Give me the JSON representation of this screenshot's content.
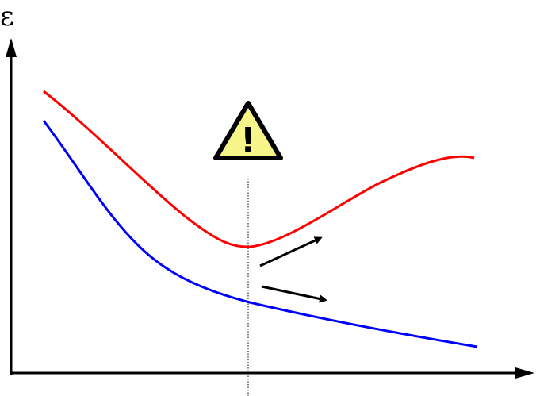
{
  "diagram": {
    "y_axis_label": "ε",
    "warning_symbol": "!",
    "colors": {
      "axes": "#000000",
      "upper_curve": "#ff0000",
      "lower_curve": "#0000ff",
      "warning_fill": "#f7f58a",
      "warning_stroke": "#000000",
      "marker_line": "#000000"
    },
    "icons": [
      "warning-triangle-icon",
      "arrow-up-right-icon",
      "arrow-down-right-icon"
    ]
  }
}
